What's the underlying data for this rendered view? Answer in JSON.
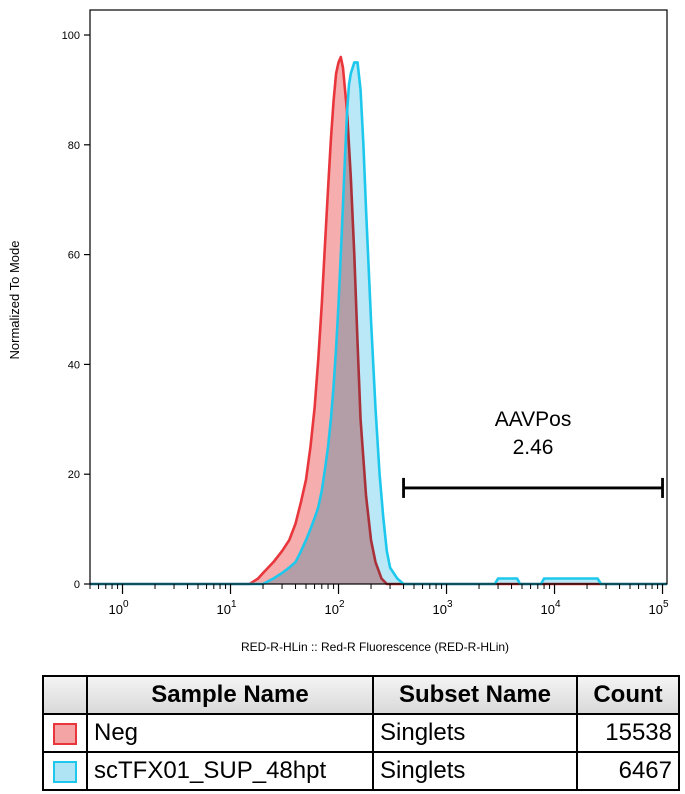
{
  "chart_data": {
    "type": "area",
    "xlabel": "RED-R-HLin :: Red-R Fluorescence (RED-R-HLin)",
    "ylabel": "Normalized To Mode",
    "x_scale": "log",
    "xlim": [
      0.5,
      110000
    ],
    "ylim": [
      0,
      100
    ],
    "x_ticks": [
      {
        "value": 1,
        "base": "10",
        "exp": "0"
      },
      {
        "value": 10,
        "base": "10",
        "exp": "1"
      },
      {
        "value": 100,
        "base": "10",
        "exp": "2"
      },
      {
        "value": 1000,
        "base": "10",
        "exp": "3"
      },
      {
        "value": 10000,
        "base": "10",
        "exp": "4"
      },
      {
        "value": 100000,
        "base": "10",
        "exp": "5"
      }
    ],
    "y_ticks": [
      "0",
      "20",
      "40",
      "60",
      "80",
      "100"
    ],
    "series": [
      {
        "name": "Neg",
        "stroke": "#e8363c",
        "fill": "#f4a4a4",
        "x": [
          0.5,
          15,
          18,
          20,
          25,
          30,
          35,
          40,
          45,
          50,
          55,
          60,
          65,
          70,
          75,
          80,
          85,
          90,
          95,
          100,
          105,
          110,
          120,
          130,
          140,
          150,
          160,
          180,
          200,
          220,
          250,
          280,
          300,
          110000
        ],
        "y": [
          0,
          0,
          1,
          2,
          4,
          6,
          8,
          11,
          15,
          19,
          25,
          32,
          41,
          51,
          62,
          72,
          81,
          88,
          93,
          95,
          96,
          94,
          86,
          74,
          60,
          44,
          30,
          16,
          8,
          4,
          1,
          0,
          0,
          0
        ]
      },
      {
        "name": "scTFX01_SUP_48hpt",
        "stroke": "#1ec8ec",
        "fill": "#aee4f4",
        "x": [
          0.5,
          20,
          25,
          30,
          35,
          40,
          45,
          50,
          55,
          60,
          65,
          70,
          75,
          80,
          85,
          90,
          95,
          100,
          105,
          110,
          115,
          120,
          125,
          130,
          140,
          150,
          160,
          170,
          180,
          200,
          220,
          240,
          260,
          280,
          300,
          350,
          400,
          2800,
          3000,
          4500,
          4800,
          7500,
          8000,
          25000,
          27000,
          110000
        ],
        "y": [
          0,
          0,
          1,
          2,
          3,
          4,
          6,
          8,
          10,
          12,
          14,
          17,
          21,
          25,
          30,
          36,
          43,
          51,
          60,
          69,
          78,
          86,
          91,
          93,
          95,
          95,
          90,
          80,
          68,
          48,
          32,
          20,
          12,
          6,
          3,
          1,
          0,
          0,
          1,
          1,
          0,
          0,
          1,
          1,
          0,
          0
        ]
      }
    ],
    "gate": {
      "name": "AAVPos",
      "value": "2.46",
      "x_start": 400,
      "x_end": 100000,
      "y": 17.5
    }
  },
  "legend": {
    "headers": [
      "Sample Name",
      "Subset Name",
      "Count"
    ],
    "rows": [
      {
        "sample": "Neg",
        "subset": "Singlets",
        "count": "15538",
        "stroke": "#e8363c",
        "fill": "#f4a4a4"
      },
      {
        "sample": "scTFX01_SUP_48hpt",
        "subset": "Singlets",
        "count": "6467",
        "stroke": "#1ec8ec",
        "fill": "#aee4f4"
      }
    ]
  }
}
